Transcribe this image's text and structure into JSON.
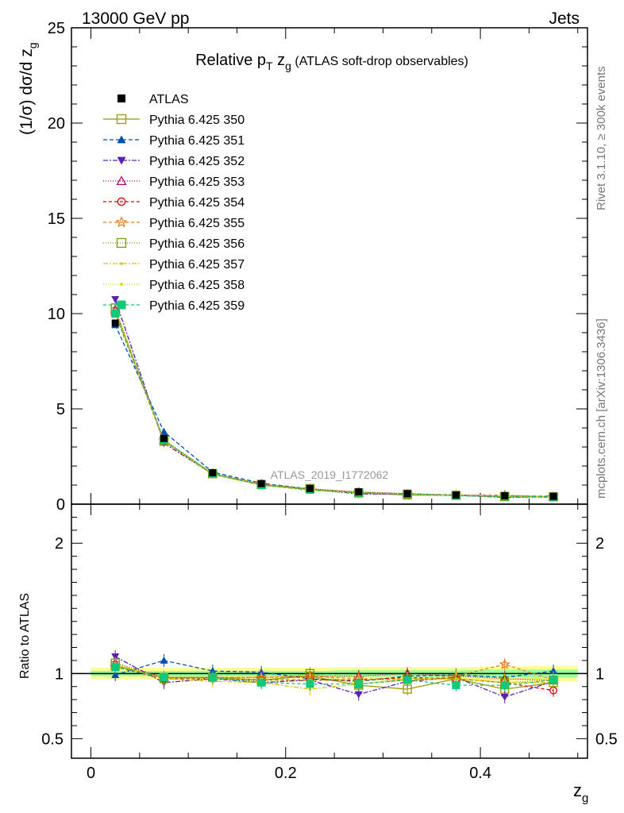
{
  "header": {
    "left": "13000 GeV pp",
    "right": "Jets"
  },
  "side_labels": {
    "top": "Rivet 3.1.10, ≥ 300k events",
    "bottom": "mcplots.cern.ch [arXiv:1306.3436]"
  },
  "colors": {
    "band_outer": "#ffff99",
    "band_inner": "#99ff99"
  },
  "chart_data": [
    {
      "type": "line",
      "title": "Relative p_T z_g (ATLAS soft-drop observables)",
      "title_parts": {
        "pre": "Relative p",
        "sub1": "T",
        "mid": " z",
        "sub2": "g",
        "post": " (ATLAS soft-drop observables)"
      },
      "watermark": "ATLAS_2019_I1772062",
      "ylabel": "(1/σ) dσ/d z_g",
      "ylabel_parts": {
        "main": "(1/σ) dσ/d z",
        "sub": "g"
      },
      "xlim": [
        -0.02,
        0.51
      ],
      "ylim": [
        0,
        25
      ],
      "yticks": [
        0,
        5,
        10,
        15,
        20,
        25
      ],
      "ytick_labels": [
        "0",
        "5",
        "10",
        "15",
        "20",
        "25"
      ],
      "legend_position": "top-left",
      "x": [
        0.025,
        0.075,
        0.125,
        0.175,
        0.225,
        0.275,
        0.325,
        0.375,
        0.425,
        0.475
      ],
      "reference": {
        "name": "ATLAS",
        "values": [
          9.5,
          3.45,
          1.65,
          1.08,
          0.82,
          0.65,
          0.55,
          0.48,
          0.44,
          0.41
        ]
      },
      "series": [
        {
          "name": "Pythia 6.425 350",
          "color": "#999900",
          "dash": "",
          "marker": "square-open",
          "values": [
            10.1,
            3.35,
            1.6,
            1.02,
            0.8,
            0.58,
            0.48,
            0.46,
            0.39,
            0.38
          ]
        },
        {
          "name": "Pythia 6.425 351",
          "color": "#0050b4",
          "dash": "5,3",
          "marker": "triangle-up",
          "values": [
            9.4,
            3.8,
            1.68,
            1.1,
            0.79,
            0.61,
            0.54,
            0.48,
            0.43,
            0.42
          ]
        },
        {
          "name": "Pythia 6.425 352",
          "color": "#5a1fb4",
          "dash": "6,2,2,2",
          "marker": "triangle-down",
          "values": [
            10.75,
            3.2,
            1.58,
            1.0,
            0.77,
            0.54,
            0.52,
            0.46,
            0.36,
            0.39
          ]
        },
        {
          "name": "Pythia 6.425 353",
          "color": "#b4005a",
          "dash": "1,2",
          "marker": "triangle-open",
          "values": [
            10.2,
            3.35,
            1.6,
            1.05,
            0.8,
            0.64,
            0.55,
            0.47,
            0.42,
            0.39
          ]
        },
        {
          "name": "Pythia 6.425 354",
          "color": "#dc0000",
          "dash": "4,3",
          "marker": "circle-open",
          "values": [
            10.0,
            3.3,
            1.58,
            1.03,
            0.78,
            0.62,
            0.53,
            0.46,
            0.41,
            0.36
          ]
        },
        {
          "name": "Pythia 6.425 355",
          "color": "#f07818",
          "dash": "4,3",
          "marker": "star-open",
          "values": [
            10.0,
            3.35,
            1.6,
            1.05,
            0.8,
            0.62,
            0.52,
            0.47,
            0.47,
            0.39
          ]
        },
        {
          "name": "Pythia 6.425 356",
          "color": "#7a9a00",
          "dash": "1,2",
          "marker": "square-open",
          "values": [
            10.3,
            3.3,
            1.6,
            1.02,
            0.82,
            0.6,
            0.53,
            0.46,
            0.41,
            0.39
          ]
        },
        {
          "name": "Pythia 6.425 357",
          "color": "#dcc800",
          "dash": "6,2,2,2",
          "marker": "dot",
          "values": [
            10.2,
            3.3,
            1.55,
            1.0,
            0.72,
            0.6,
            0.52,
            0.46,
            0.41,
            0.38
          ]
        },
        {
          "name": "Pythia 6.425 358",
          "color": "#c8dc00",
          "dash": "1,2",
          "marker": "dot",
          "values": [
            10.0,
            3.35,
            1.58,
            1.02,
            0.78,
            0.61,
            0.53,
            0.46,
            0.42,
            0.4
          ]
        },
        {
          "name": "Pythia 6.425 359",
          "color": "#14c878",
          "dash": "4,3",
          "marker": "square",
          "values": [
            10.0,
            3.35,
            1.6,
            1.0,
            0.75,
            0.6,
            0.52,
            0.44,
            0.4,
            0.39
          ]
        }
      ]
    },
    {
      "type": "line",
      "ylabel": "Ratio to ATLAS",
      "xlabel": "z_g",
      "xlabel_parts": {
        "main": "z",
        "sub": "g"
      },
      "xlim": [
        -0.02,
        0.51
      ],
      "xticks": [
        0,
        0.2,
        0.4
      ],
      "xtick_labels": [
        "0",
        "0.2",
        "0.4"
      ],
      "ylim": [
        0.35,
        2.3
      ],
      "yticks": [
        0.5,
        1,
        2
      ],
      "ytick_labels": [
        "0.5",
        "1",
        "2"
      ],
      "x": [
        0.025,
        0.075,
        0.125,
        0.175,
        0.225,
        0.275,
        0.325,
        0.375,
        0.425,
        0.475
      ],
      "band_outer_halfwidth": [
        0.045,
        0.045,
        0.045,
        0.045,
        0.045,
        0.05,
        0.05,
        0.05,
        0.055,
        0.06
      ],
      "band_inner_halfwidth": [
        0.02,
        0.02,
        0.02,
        0.02,
        0.02,
        0.025,
        0.025,
        0.025,
        0.03,
        0.03
      ],
      "series": [
        {
          "name": "Pythia 6.425 350",
          "values": [
            1.06,
            0.97,
            0.97,
            0.95,
            0.98,
            0.91,
            0.88,
            0.96,
            0.88,
            0.93
          ]
        },
        {
          "name": "Pythia 6.425 351",
          "values": [
            0.99,
            1.1,
            1.02,
            1.01,
            0.96,
            0.94,
            0.98,
            0.99,
            0.97,
            1.02
          ]
        },
        {
          "name": "Pythia 6.425 352",
          "values": [
            1.13,
            0.93,
            0.96,
            0.93,
            0.95,
            0.84,
            0.94,
            0.97,
            0.82,
            0.94
          ]
        },
        {
          "name": "Pythia 6.425 353",
          "values": [
            1.08,
            0.97,
            0.97,
            0.97,
            0.98,
            0.98,
            1.0,
            0.98,
            0.96,
            0.95
          ]
        },
        {
          "name": "Pythia 6.425 354",
          "values": [
            1.05,
            0.96,
            0.96,
            0.95,
            0.95,
            0.95,
            0.97,
            0.96,
            0.93,
            0.87
          ]
        },
        {
          "name": "Pythia 6.425 355",
          "values": [
            1.05,
            0.97,
            0.97,
            0.97,
            0.98,
            0.96,
            0.95,
            0.98,
            1.07,
            0.95
          ]
        },
        {
          "name": "Pythia 6.425 356",
          "values": [
            1.08,
            0.96,
            0.97,
            0.94,
            1.0,
            0.92,
            0.96,
            0.96,
            0.93,
            0.95
          ]
        },
        {
          "name": "Pythia 6.425 357",
          "values": [
            1.07,
            0.96,
            0.94,
            0.93,
            0.88,
            0.92,
            0.95,
            0.96,
            0.93,
            0.93
          ]
        },
        {
          "name": "Pythia 6.425 358",
          "values": [
            1.05,
            0.97,
            0.96,
            0.95,
            0.95,
            0.94,
            0.96,
            0.96,
            0.95,
            0.97
          ]
        },
        {
          "name": "Pythia 6.425 359",
          "values": [
            1.05,
            0.97,
            0.97,
            0.93,
            0.92,
            0.92,
            0.95,
            0.91,
            0.91,
            0.95
          ]
        }
      ]
    }
  ]
}
